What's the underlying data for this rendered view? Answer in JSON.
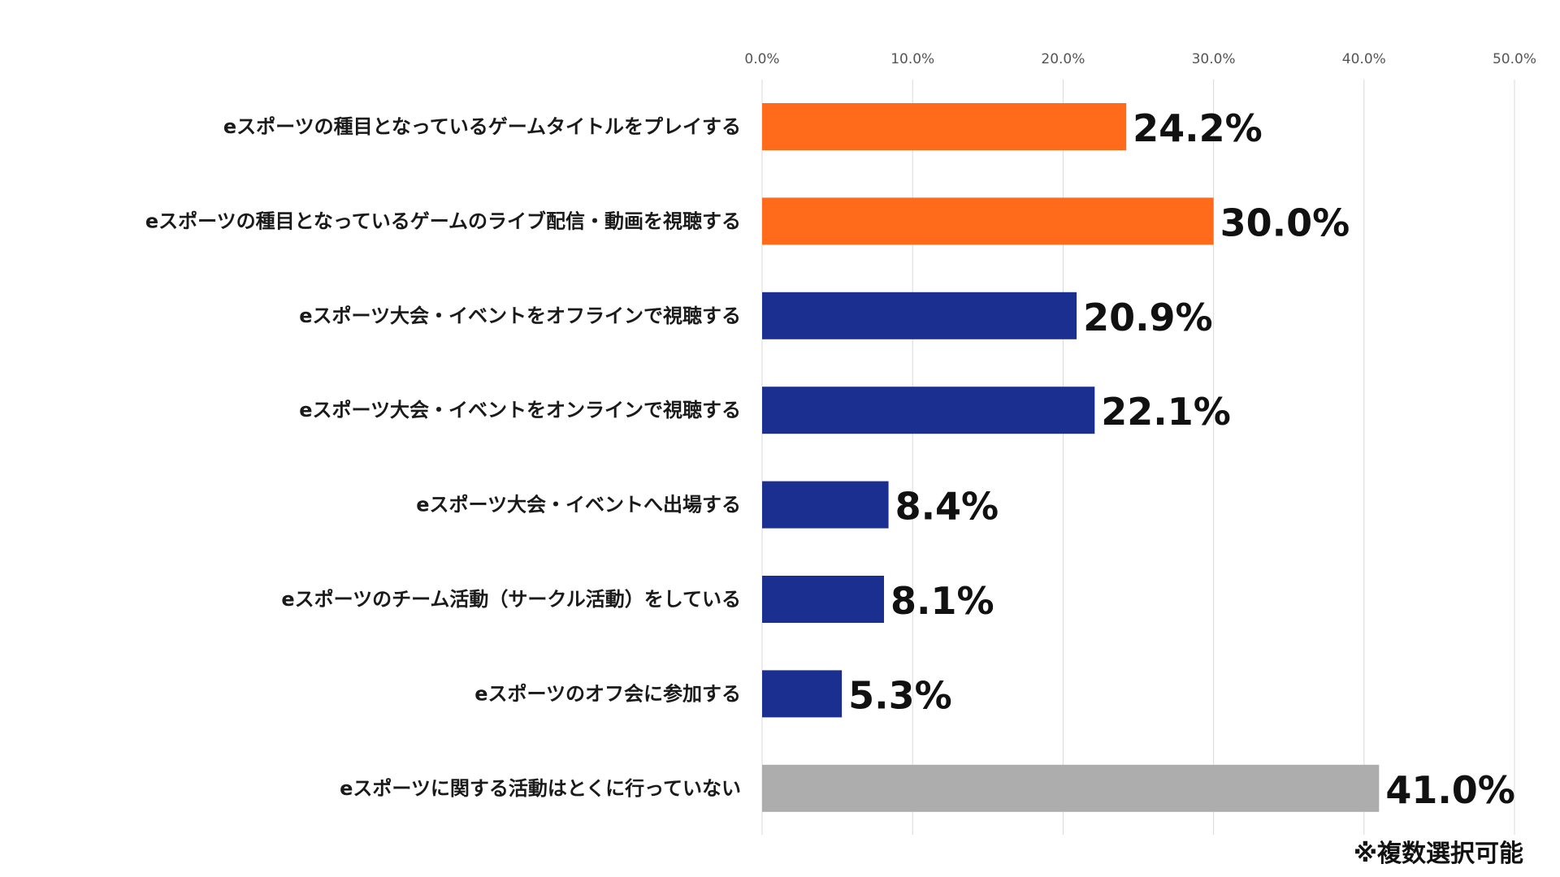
{
  "chart_data": {
    "type": "bar",
    "orientation": "horizontal",
    "categories": [
      "eスポーツの種目となっているゲームタイトルをプレイする",
      "eスポーツの種目となっているゲームのライブ配信・動画を視聴する",
      "eスポーツ大会・イベントをオフラインで視聴する",
      "eスポーツ大会・イベントをオンラインで視聴する",
      "eスポーツ大会・イベントへ出場する",
      "eスポーツのチーム活動（サークル活動）をしている",
      "eスポーツのオフ会に参加する",
      "eスポーツに関する活動はとくに行っていない"
    ],
    "values": [
      24.2,
      30.0,
      20.9,
      22.1,
      8.4,
      8.1,
      5.3,
      41.0
    ],
    "value_labels": [
      "24.2%",
      "30.0%",
      "20.9%",
      "22.1%",
      "8.4%",
      "8.1%",
      "5.3%",
      "41.0%"
    ],
    "bar_colors": [
      "#ff6b1a",
      "#ff6b1a",
      "#1a2f8f",
      "#1a2f8f",
      "#1a2f8f",
      "#1a2f8f",
      "#1a2f8f",
      "#adadad"
    ],
    "x_ticks": [
      "0.0%",
      "10.0%",
      "20.0%",
      "30.0%",
      "40.0%",
      "50.0%"
    ],
    "xlim": [
      0,
      50
    ],
    "x_axis_position": "top",
    "grid": true,
    "title": "",
    "xlabel": "",
    "ylabel": ""
  },
  "footnote": "※複数選択可能"
}
